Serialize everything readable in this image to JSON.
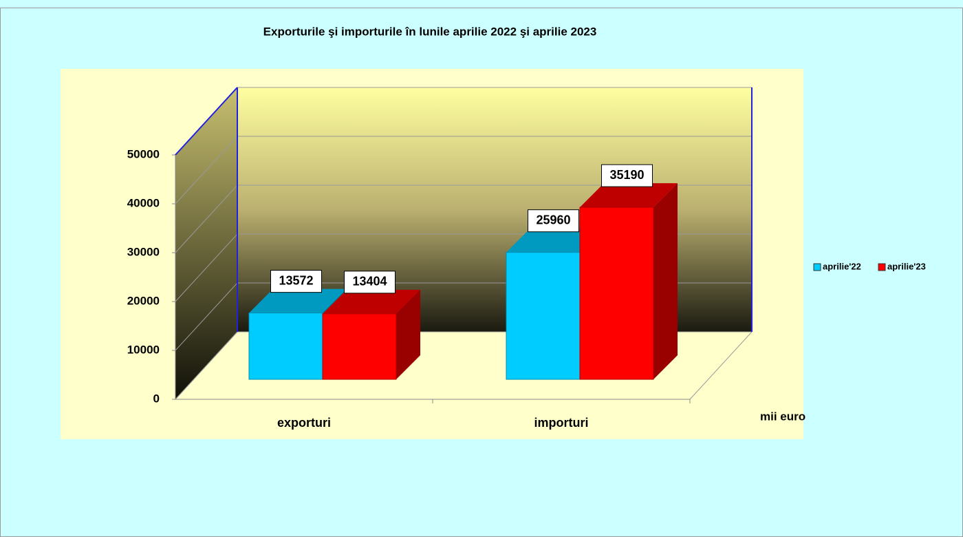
{
  "chart_data": {
    "type": "bar3d",
    "title": "Exporturile şi importurile în lunile aprilie 2022 şi aprilie 2023",
    "categories": [
      "exporturi",
      "importuri"
    ],
    "series": [
      {
        "name": "aprilie'22",
        "color": "#00ccff",
        "values": [
          13572,
          25960
        ]
      },
      {
        "name": "aprilie'23",
        "color": "#ff0000",
        "values": [
          13404,
          35190
        ]
      }
    ],
    "ylim": [
      0,
      50000
    ],
    "yticks": [
      0,
      10000,
      20000,
      30000,
      40000,
      50000
    ],
    "unit_label": "mii euro",
    "grid": true,
    "legend": "right"
  }
}
